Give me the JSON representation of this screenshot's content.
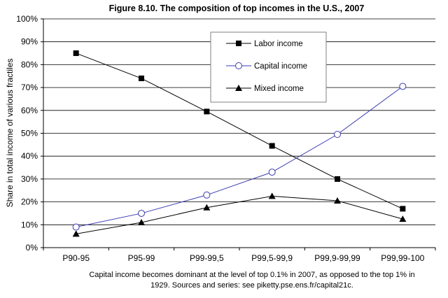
{
  "chart_data": {
    "type": "line",
    "title": "Figure 8.10. The composition of top incomes in the U.S., 2007",
    "ylabel": "Share in total income of various fractiles",
    "xlabel": "",
    "ylim": [
      0,
      100
    ],
    "ytick_step": 10,
    "y_unit": "%",
    "grid": "horizontal",
    "legend_position": "top-center",
    "categories": [
      "P90-95",
      "P95-99",
      "P99-99,5",
      "P99,5-99,9",
      "P99,9-99,99",
      "P99,99-100"
    ],
    "series": [
      {
        "name": "Labor income",
        "marker": "square",
        "line_color": "#000000",
        "values": [
          85,
          74,
          59.5,
          44.5,
          30,
          17
        ]
      },
      {
        "name": "Capital income",
        "marker": "open-circle",
        "line_color": "#3b3bb0",
        "values": [
          9,
          15,
          23,
          33,
          49.5,
          70.5
        ]
      },
      {
        "name": "Mixed income",
        "marker": "triangle",
        "line_color": "#000000",
        "values": [
          6,
          11,
          17.5,
          22.5,
          20.5,
          12.5
        ]
      }
    ]
  },
  "caption": {
    "line1": "Capital income becomes dominant at the level of top 0.1% in 2007, as opposed to the top 1% in",
    "line2": "1929. Sources and series: see piketty.pse.ens.fr/capital21c."
  }
}
